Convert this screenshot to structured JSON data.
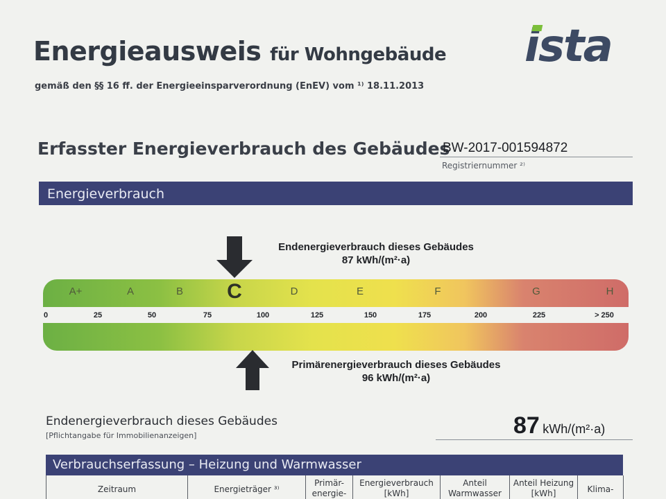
{
  "header": {
    "title_main": "Energieausweis",
    "title_sub": "für Wohngebäude",
    "legal_line": "gemäß den §§ 16 ff. der Energieeinsparverordnung (EnEV) vom ¹⁾ 18.11.2013",
    "logo_text": "ista"
  },
  "section": {
    "heading": "Erfasster Energieverbrauch des Gebäudes",
    "reg_number": "BW-2017-001594872",
    "reg_label": "Registriernummer ²⁾"
  },
  "energy_bar": {
    "title": "Energieverbrauch"
  },
  "scale": {
    "classes": [
      "A+",
      "A",
      "B",
      "C",
      "D",
      "E",
      "F",
      "G",
      "H"
    ],
    "highlighted_class": "C",
    "ticks": [
      "0",
      "25",
      "50",
      "75",
      "100",
      "125",
      "150",
      "175",
      "200",
      "225",
      "> 250"
    ],
    "endenergie": {
      "label": "Endenergieverbrauch dieses Gebäudes",
      "value": "87 kWh/(m²·a)",
      "number": 87
    },
    "primaerenergie": {
      "label": "Primärenergieverbrauch dieses Gebäudes",
      "value": "96 kWh/(m²·a)",
      "number": 96
    }
  },
  "summary": {
    "title": "Endenergieverbrauch dieses Gebäudes",
    "note": "[Pflichtangabe für Immobilienanzeigen]",
    "value": "87",
    "unit": "kWh/(m²·a)"
  },
  "table_section": {
    "title": "Verbrauchserfassung – Heizung und Warmwasser",
    "columns": [
      "Zeitraum",
      "Energieträger ³⁾",
      "Primär-\nenergie-",
      "Energieverbrauch\n[kWh]",
      "Anteil\nWarmwasser",
      "Anteil Heizung\n[kWh]",
      "Klima-"
    ]
  },
  "colors": {
    "band_blue": "#3b4275",
    "scale_green": "#6cb044",
    "scale_yellow": "#efe04d",
    "scale_red": "#cf6c68"
  }
}
